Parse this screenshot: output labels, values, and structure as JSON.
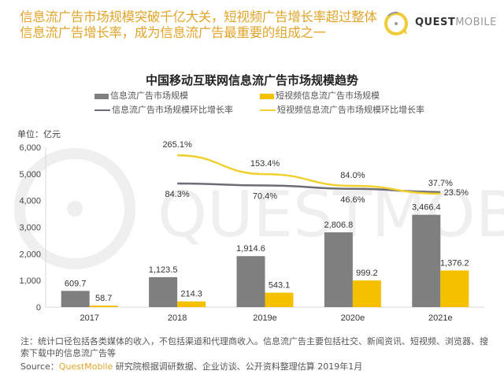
{
  "header": {
    "headline_line1": "信息流广告市场规模突破千亿大关，短视频广告增长率超过整体",
    "headline_line2": "信息流广告增长率，成为信息流广告最重要的组成之一",
    "logo_bold": "QUEST",
    "logo_light": "MOBILE",
    "accent_color": "#e2a52b"
  },
  "chart_data": {
    "type": "bar",
    "title": "中国移动互联网信息流广告市场规模趋势",
    "ylabel": "单位：亿元",
    "xlabel": "",
    "ylim": [
      0,
      6000
    ],
    "yticks": [
      "0",
      "1,000",
      "2,000",
      "3,000",
      "4,000",
      "5,000",
      "6,000"
    ],
    "ytick_values": [
      0,
      1000,
      2000,
      3000,
      4000,
      5000,
      6000
    ],
    "grid": false,
    "legend_placement": "top",
    "categories": [
      "2017",
      "2018",
      "2019e",
      "2020e",
      "2021e"
    ],
    "series": [
      {
        "name": "信息流广告市场规模",
        "type": "bar",
        "color": "#7f7f7f",
        "values": [
          609.7,
          1123.5,
          1914.6,
          2806.8,
          3466.4
        ],
        "labels": [
          "609.7",
          "1,123.5",
          "1,914.6",
          "2,806.8",
          "3,466.4"
        ]
      },
      {
        "name": "短视频信息流广告市场规模",
        "type": "bar",
        "color": "#f5c000",
        "values": [
          58.7,
          214.3,
          543.1,
          999.2,
          1376.2
        ],
        "labels": [
          "58.7",
          "214.3",
          "543.1",
          "999.2",
          "1,376.2"
        ]
      },
      {
        "name": "信息流广告市场规模环比增长率",
        "type": "line",
        "color": "#6d6d75",
        "values": [
          null,
          84.3,
          70.4,
          46.6,
          23.5
        ],
        "labels": [
          "",
          "84.3%",
          "70.4%",
          "46.6%",
          "23.5%"
        ]
      },
      {
        "name": "短视频信息流广告市场规模环比增长率",
        "type": "line",
        "color": "#f0d030",
        "values": [
          null,
          265.1,
          153.4,
          84.0,
          37.7
        ],
        "labels": [
          "",
          "265.1%",
          "153.4%",
          "84.0%",
          "37.7%"
        ]
      }
    ]
  },
  "footer": {
    "note": "注：统计口径包括各类媒体的收入，不包括渠道和代理商收入。信息流广告主要包括社交、新闻资讯、短视频、浏览器、搜索下载中的信息流广告等",
    "source_prefix": "Source：",
    "source_brand": "QuestMobile",
    "source_rest": " 研究院根据调研数据、企业访谈、公开资料整理估算 2019年1月"
  }
}
